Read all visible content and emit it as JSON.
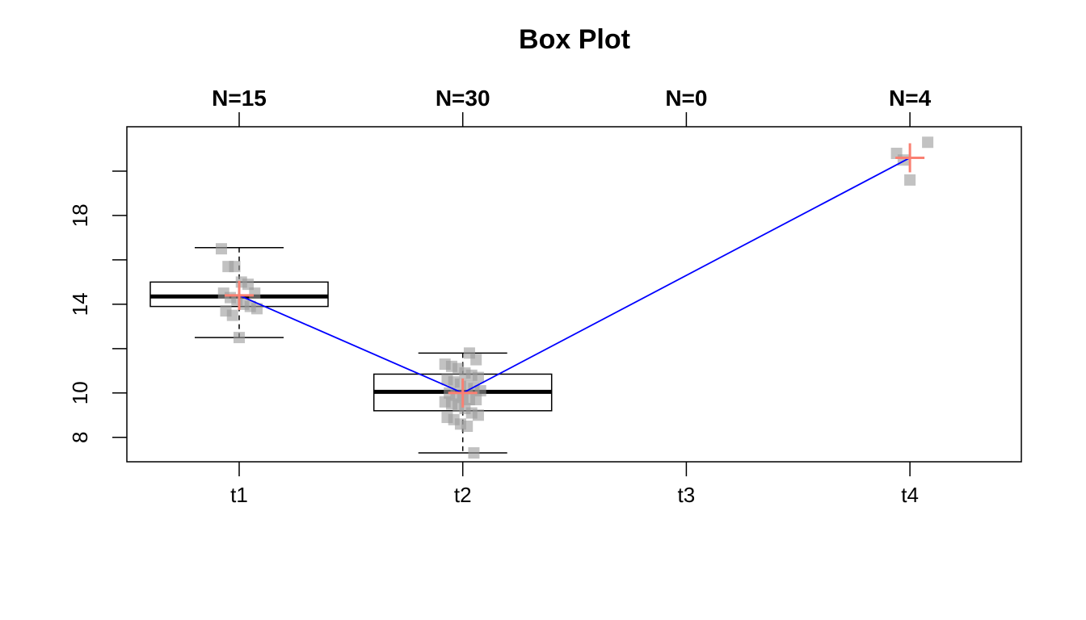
{
  "chart_data": {
    "type": "box",
    "title": "Box Plot",
    "categories": [
      "t1",
      "t2",
      "t3",
      "t4"
    ],
    "counts": [
      "N=15",
      "N=30",
      "N=0",
      "N=4"
    ],
    "y_ticks": [
      8,
      10,
      14,
      18
    ],
    "y_minor_ticks": [
      8,
      10,
      12,
      14,
      16,
      18,
      20
    ],
    "ylim": [
      6.9,
      22
    ],
    "boxes": [
      {
        "category": "t1",
        "whisker_low": 12.5,
        "q1": 13.9,
        "median": 14.35,
        "q3": 15.0,
        "whisker_high": 16.55,
        "mean": 14.4
      },
      {
        "category": "t2",
        "whisker_low": 7.3,
        "q1": 9.2,
        "median": 10.05,
        "q3": 10.85,
        "whisker_high": 11.8,
        "mean": 10.0
      },
      {
        "category": "t3"
      },
      {
        "category": "t4",
        "mean": 20.6
      }
    ],
    "points": {
      "t1": [
        16.5,
        15.7,
        15.7,
        15.0,
        14.9,
        14.5,
        14.5,
        14.3,
        14.2,
        14.0,
        13.9,
        13.8,
        13.7,
        13.5,
        12.5
      ],
      "t2": [
        11.8,
        11.5,
        11.3,
        11.2,
        11.1,
        10.9,
        10.8,
        10.7,
        10.6,
        10.5,
        10.4,
        10.3,
        10.2,
        10.1,
        10.0,
        9.9,
        9.8,
        9.7,
        9.7,
        9.6,
        9.5,
        9.4,
        9.3,
        9.1,
        9.0,
        8.9,
        8.8,
        8.6,
        8.5,
        7.3
      ],
      "t3": [],
      "t4": [
        21.3,
        20.8,
        20.5,
        19.6
      ]
    },
    "mean_line_color": "#0000ff",
    "mean_marker_color": "#fa8072",
    "point_color": "#999999",
    "grid": false,
    "legend": "none"
  }
}
